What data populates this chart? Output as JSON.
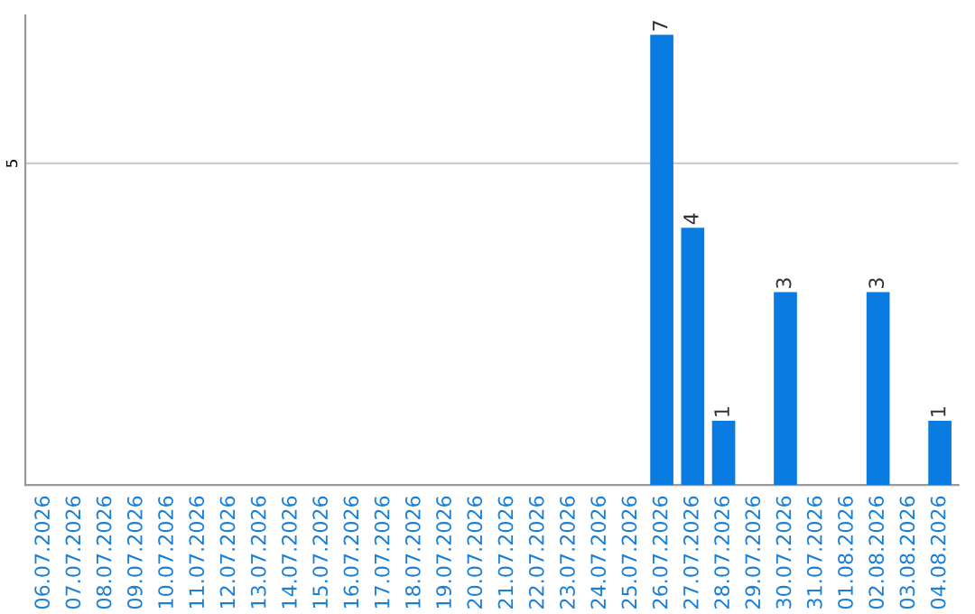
{
  "chart_data": {
    "type": "bar",
    "categories": [
      "06.07.2026",
      "07.07.2026",
      "08.07.2026",
      "09.07.2026",
      "10.07.2026",
      "11.07.2026",
      "12.07.2026",
      "13.07.2026",
      "14.07.2026",
      "15.07.2026",
      "16.07.2026",
      "17.07.2026",
      "18.07.2026",
      "19.07.2026",
      "20.07.2026",
      "21.07.2026",
      "22.07.2026",
      "23.07.2026",
      "24.07.2026",
      "25.07.2026",
      "26.07.2026",
      "27.07.2026",
      "28.07.2026",
      "29.07.2026",
      "30.07.2026",
      "31.07.2026",
      "01.08.2026",
      "02.08.2026",
      "03.08.2026",
      "04.08.2026"
    ],
    "values": [
      null,
      null,
      null,
      null,
      null,
      null,
      null,
      null,
      null,
      null,
      null,
      null,
      null,
      null,
      null,
      null,
      null,
      null,
      null,
      null,
      7,
      4,
      1,
      null,
      3,
      null,
      null,
      3,
      null,
      1
    ],
    "data_labels": true,
    "color": "#0a7be0",
    "ylim": [
      0,
      7.3
    ],
    "yticks": [
      5
    ],
    "grid": "y"
  }
}
